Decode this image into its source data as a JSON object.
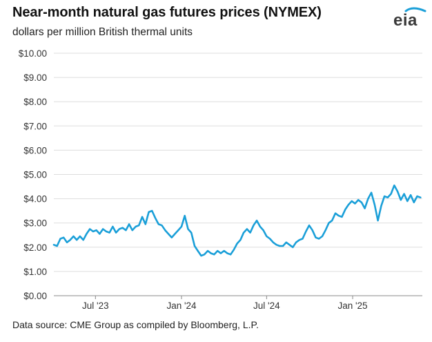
{
  "header": {
    "title": "Near-month natural gas futures prices (NYMEX)",
    "subtitle": "dollars per million British thermal units"
  },
  "footer": {
    "source": "Data source: CME Group as compiled by Bloomberg, L.P."
  },
  "logo": {
    "text": "eia",
    "icon": "eia-logo-icon",
    "accent_color": "#1a9fd8"
  },
  "chart_data": {
    "type": "line",
    "title": "Near-month natural gas futures prices (NYMEX)",
    "ylabel": "dollars per million British thermal units",
    "xlabel": "",
    "xlim": [
      "2023-04-03",
      "2025-05-30"
    ],
    "ylim": [
      0,
      10
    ],
    "y_ticks": [
      {
        "value": 0,
        "label": "$0.00"
      },
      {
        "value": 1,
        "label": "$1.00"
      },
      {
        "value": 2,
        "label": "$2.00"
      },
      {
        "value": 3,
        "label": "$3.00"
      },
      {
        "value": 4,
        "label": "$4.00"
      },
      {
        "value": 5,
        "label": "$5.00"
      },
      {
        "value": 6,
        "label": "$6.00"
      },
      {
        "value": 7,
        "label": "$7.00"
      },
      {
        "value": 8,
        "label": "$8.00"
      },
      {
        "value": 9,
        "label": "$9.00"
      },
      {
        "value": 10,
        "label": "$10.00"
      }
    ],
    "x_ticks": [
      {
        "value": "2023-07-01",
        "label": "Jul '23"
      },
      {
        "value": "2024-01-01",
        "label": "Jan '24"
      },
      {
        "value": "2024-07-01",
        "label": "Jul '24"
      },
      {
        "value": "2025-01-01",
        "label": "Jan '25"
      }
    ],
    "grid": "horizontal",
    "legend": "none",
    "series": [
      {
        "color": "#1a9fd8",
        "x": [
          "2023-04-03",
          "2023-04-10",
          "2023-04-17",
          "2023-04-24",
          "2023-05-01",
          "2023-05-08",
          "2023-05-15",
          "2023-05-22",
          "2023-05-29",
          "2023-06-05",
          "2023-06-12",
          "2023-06-19",
          "2023-06-26",
          "2023-07-03",
          "2023-07-10",
          "2023-07-17",
          "2023-07-24",
          "2023-07-31",
          "2023-08-07",
          "2023-08-14",
          "2023-08-21",
          "2023-08-28",
          "2023-09-04",
          "2023-09-11",
          "2023-09-18",
          "2023-09-25",
          "2023-10-02",
          "2023-10-09",
          "2023-10-16",
          "2023-10-23",
          "2023-10-30",
          "2023-11-06",
          "2023-11-13",
          "2023-11-20",
          "2023-11-27",
          "2023-12-04",
          "2023-12-11",
          "2023-12-18",
          "2023-12-25",
          "2024-01-01",
          "2024-01-08",
          "2024-01-15",
          "2024-01-22",
          "2024-01-29",
          "2024-02-05",
          "2024-02-12",
          "2024-02-19",
          "2024-02-26",
          "2024-03-04",
          "2024-03-11",
          "2024-03-18",
          "2024-03-25",
          "2024-04-01",
          "2024-04-08",
          "2024-04-15",
          "2024-04-22",
          "2024-04-29",
          "2024-05-06",
          "2024-05-13",
          "2024-05-20",
          "2024-05-27",
          "2024-06-03",
          "2024-06-10",
          "2024-06-17",
          "2024-06-24",
          "2024-07-01",
          "2024-07-08",
          "2024-07-15",
          "2024-07-22",
          "2024-07-29",
          "2024-08-05",
          "2024-08-12",
          "2024-08-19",
          "2024-08-26",
          "2024-09-02",
          "2024-09-09",
          "2024-09-16",
          "2024-09-23",
          "2024-09-30",
          "2024-10-07",
          "2024-10-14",
          "2024-10-21",
          "2024-10-28",
          "2024-11-04",
          "2024-11-11",
          "2024-11-18",
          "2024-11-25",
          "2024-12-02",
          "2024-12-09",
          "2024-12-16",
          "2024-12-23",
          "2024-12-30",
          "2025-01-06",
          "2025-01-13",
          "2025-01-20",
          "2025-01-27",
          "2025-02-03",
          "2025-02-10",
          "2025-02-17",
          "2025-02-24",
          "2025-03-03",
          "2025-03-10",
          "2025-03-17",
          "2025-03-24",
          "2025-03-31",
          "2025-04-07",
          "2025-04-14",
          "2025-04-21",
          "2025-04-28",
          "2025-05-05",
          "2025-05-12",
          "2025-05-19",
          "2025-05-26"
        ],
        "values": [
          2.1,
          2.05,
          2.35,
          2.4,
          2.2,
          2.3,
          2.45,
          2.3,
          2.45,
          2.3,
          2.55,
          2.75,
          2.65,
          2.7,
          2.55,
          2.75,
          2.65,
          2.6,
          2.85,
          2.6,
          2.75,
          2.8,
          2.7,
          2.95,
          2.7,
          2.85,
          2.9,
          3.25,
          2.95,
          3.45,
          3.5,
          3.2,
          2.95,
          2.9,
          2.7,
          2.55,
          2.4,
          2.55,
          2.7,
          2.85,
          3.3,
          2.75,
          2.6,
          2.05,
          1.85,
          1.65,
          1.7,
          1.85,
          1.75,
          1.7,
          1.85,
          1.75,
          1.85,
          1.75,
          1.7,
          1.9,
          2.15,
          2.3,
          2.6,
          2.75,
          2.6,
          2.9,
          3.1,
          2.85,
          2.7,
          2.45,
          2.35,
          2.2,
          2.1,
          2.05,
          2.05,
          2.2,
          2.1,
          2.0,
          2.2,
          2.3,
          2.35,
          2.65,
          2.9,
          2.7,
          2.4,
          2.35,
          2.45,
          2.7,
          3.0,
          3.1,
          3.4,
          3.3,
          3.25,
          3.55,
          3.75,
          3.9,
          3.8,
          3.95,
          3.85,
          3.6,
          4.0,
          4.25,
          3.75,
          3.1,
          3.7,
          4.1,
          4.05,
          4.2,
          4.55,
          4.3,
          3.95,
          4.2,
          3.9,
          4.15,
          3.85,
          4.1,
          4.05
        ]
      }
    ]
  }
}
